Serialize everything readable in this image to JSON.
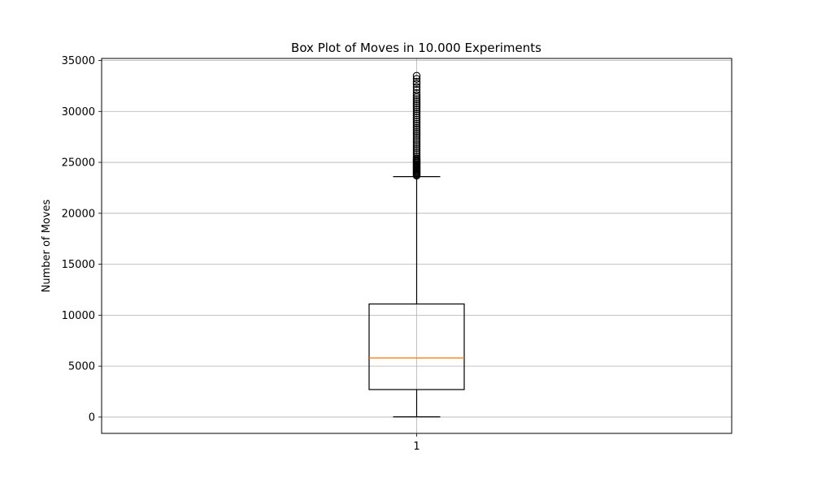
{
  "chart_data": {
    "type": "box",
    "title": "Box Plot of Moves in 10.000 Experiments",
    "xlabel": "",
    "ylabel": "Number of Moves",
    "ylim": [
      -1600,
      35200
    ],
    "yticks": [
      0,
      5000,
      10000,
      15000,
      20000,
      25000,
      30000,
      35000
    ],
    "ytick_labels": [
      "0",
      "5000",
      "10000",
      "15000",
      "20000",
      "25000",
      "30000",
      "35000"
    ],
    "categories": [
      "1"
    ],
    "grid": true,
    "boxes": [
      {
        "category": "1",
        "whisker_low": 20,
        "q1": 2700,
        "median": 5800,
        "q3": 11100,
        "whisker_high": 23600,
        "outliers": [
          23700,
          23800,
          23900,
          24000,
          24100,
          24200,
          24300,
          24400,
          24500,
          24600,
          24700,
          24800,
          24900,
          25000,
          25100,
          25200,
          25300,
          25400,
          25600,
          25800,
          26000,
          26200,
          26400,
          26600,
          26800,
          27000,
          27200,
          27400,
          27600,
          27800,
          28000,
          28200,
          28400,
          28600,
          28800,
          29000,
          29200,
          29400,
          29600,
          29800,
          30000,
          30200,
          30400,
          30600,
          30800,
          31000,
          31200,
          31400,
          31600,
          31800,
          32100,
          32400,
          32700,
          32900,
          33200,
          33500
        ]
      }
    ],
    "colors": {
      "box": "#000000",
      "median": "#ff7f0e",
      "grid": "#b0b0b0",
      "outlier": "#000000"
    }
  }
}
